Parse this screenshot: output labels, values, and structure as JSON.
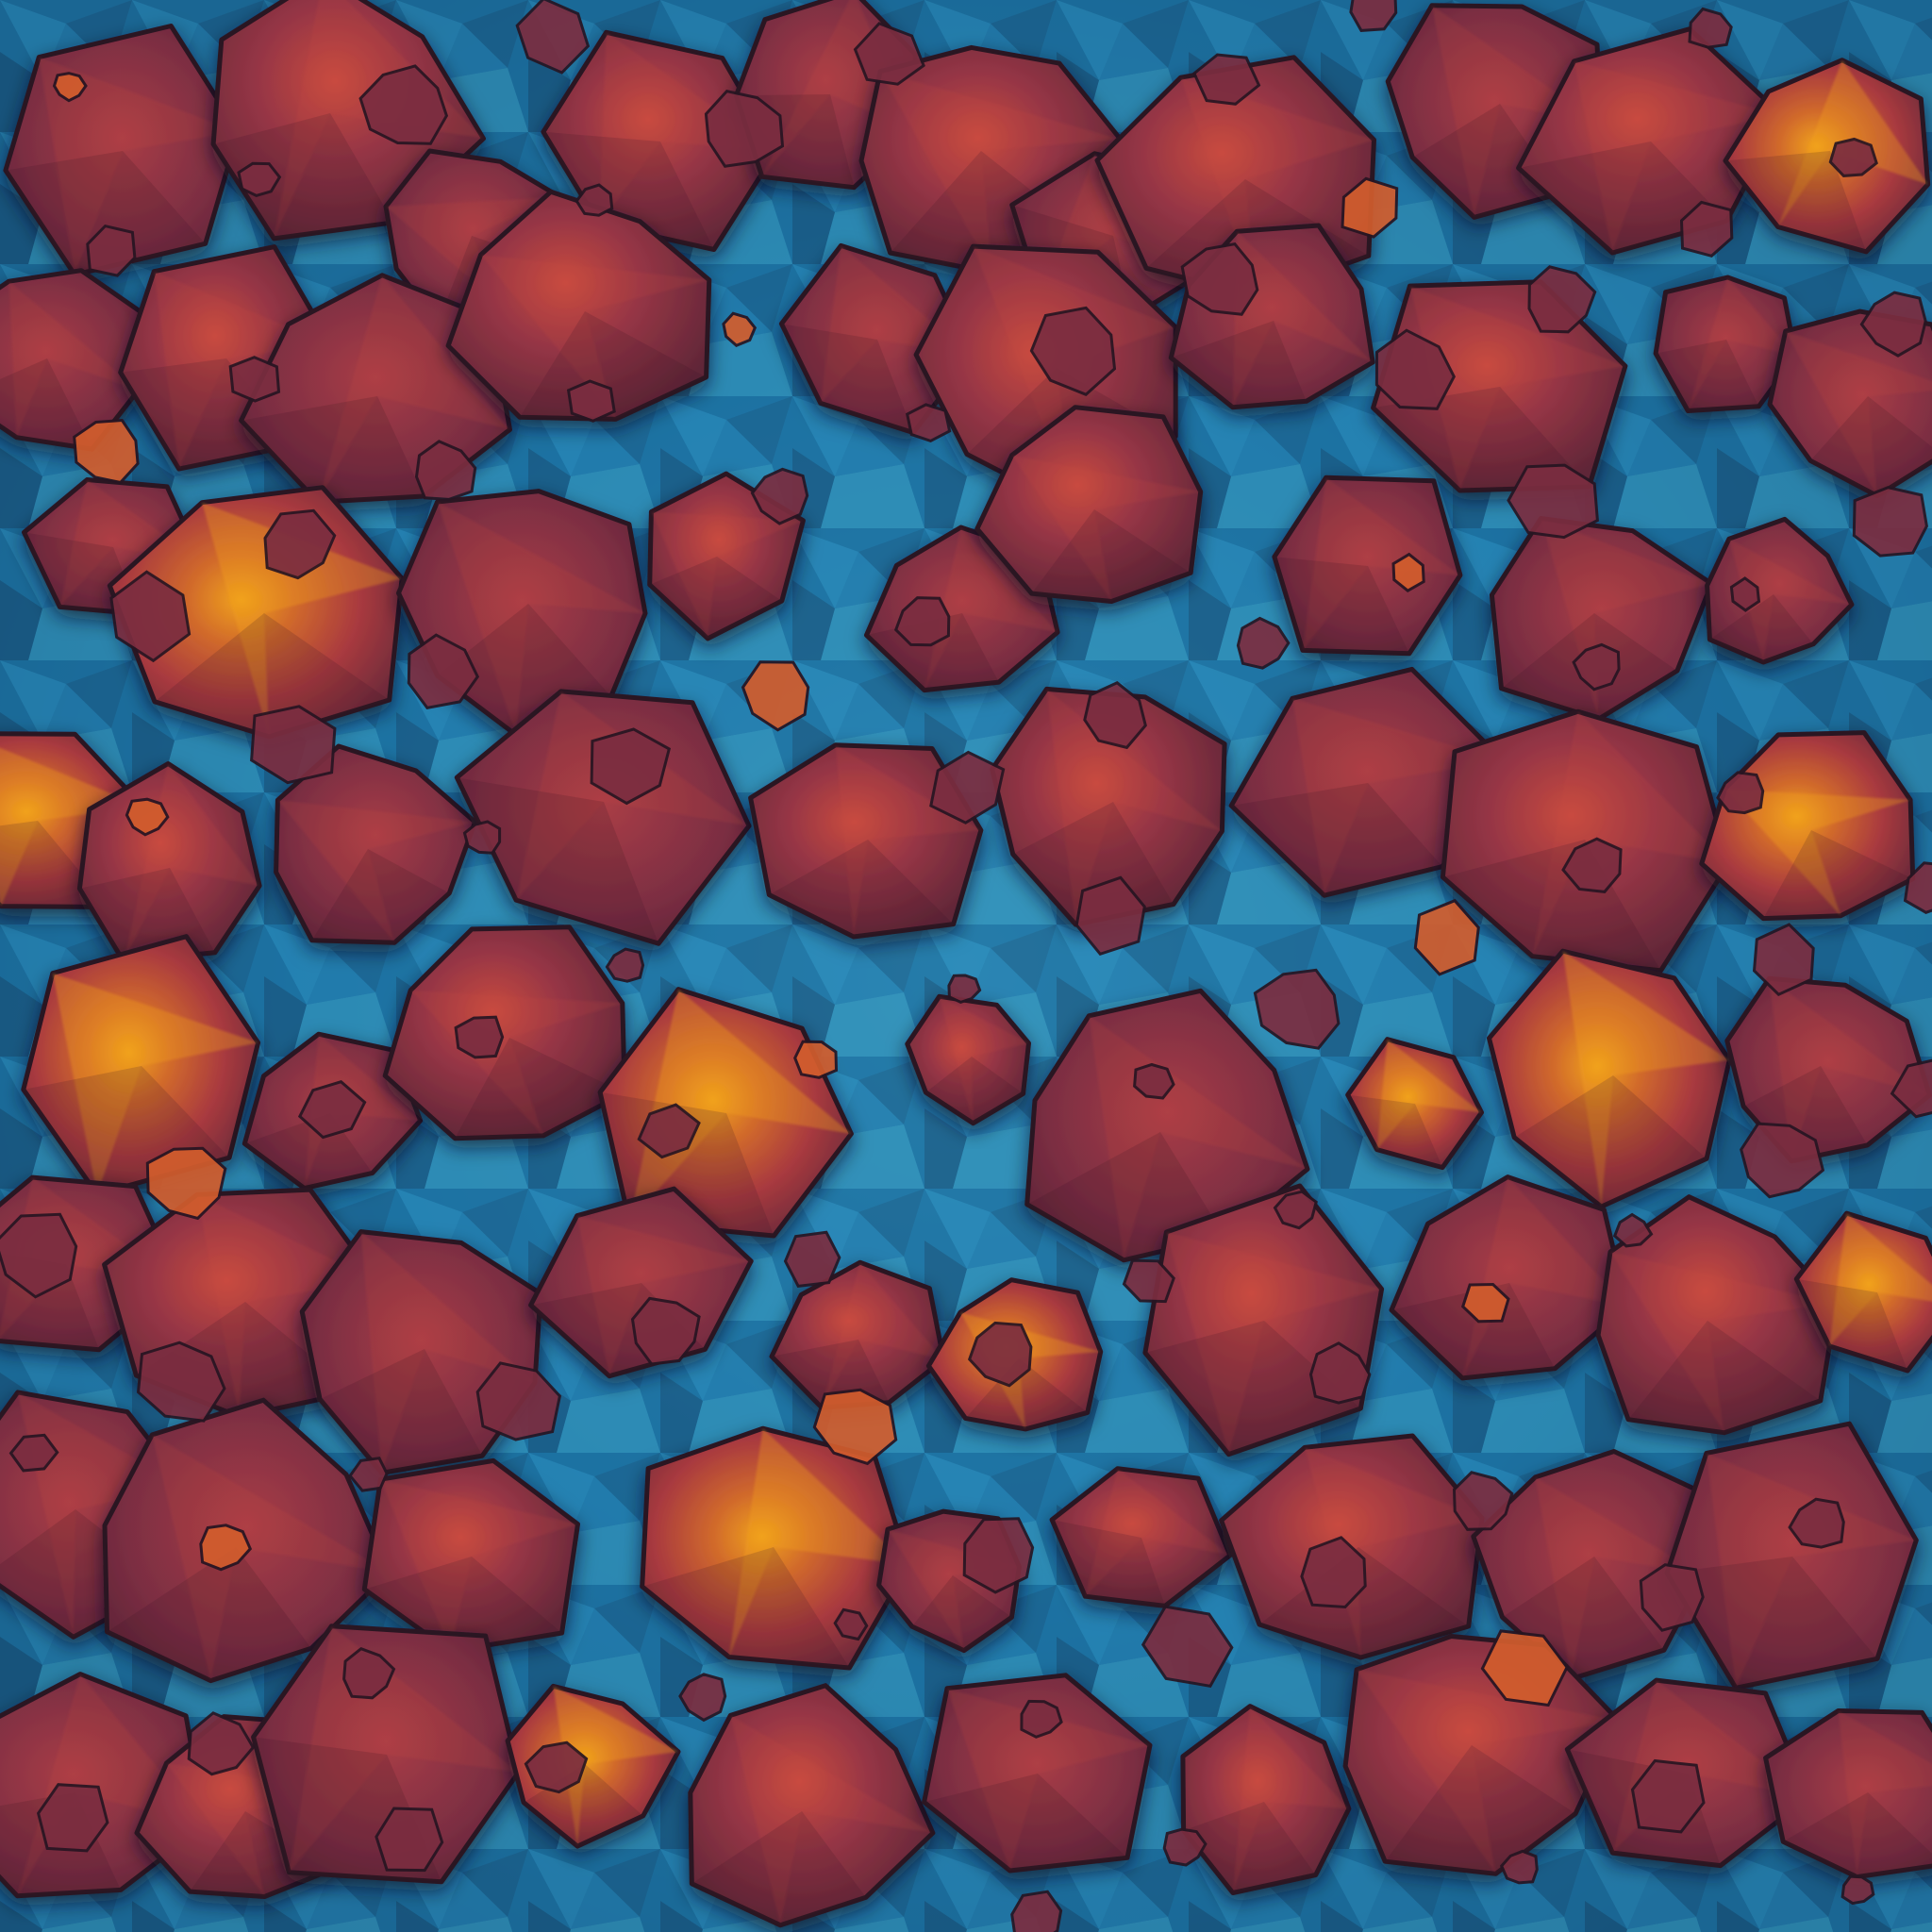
{
  "image": {
    "subject": "crystal-cluster-texture",
    "palette": {
      "background_deep": "#143c5c",
      "background_mid": "#1a78ad",
      "background_light": "#4aa0c0",
      "crystal_dark": "#5f2638",
      "crystal_mid": "#8e3444",
      "crystal_warm": "#b3423f",
      "crystal_highlight": "#e8931f",
      "outline": "#2a1622"
    }
  }
}
